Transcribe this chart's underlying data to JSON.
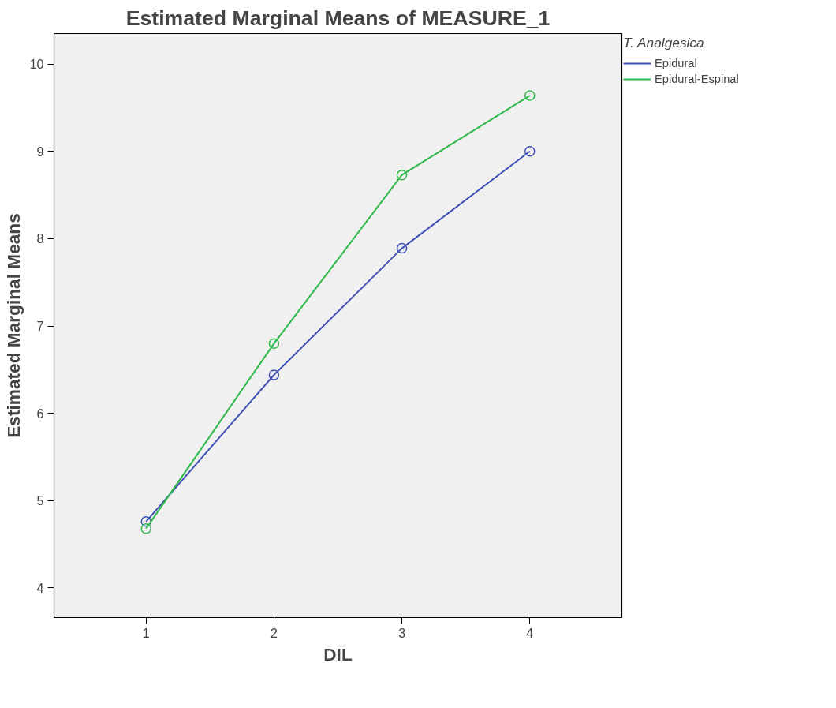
{
  "chart_data": {
    "type": "line",
    "title": "Estimated Marginal Means of MEASURE_1",
    "xlabel": "DIL",
    "ylabel": "Estimated Marginal Means",
    "legend_title": "T. Analgesica",
    "x": [
      1,
      2,
      3,
      4
    ],
    "series": [
      {
        "name": "Epidural",
        "color": "#3f51b5",
        "values": [
          4.76,
          6.44,
          7.89,
          9.0
        ]
      },
      {
        "name": "Epidural-Espinal",
        "color": "#2fb84a",
        "values": [
          4.68,
          6.8,
          8.73,
          9.64
        ]
      }
    ],
    "xlim": [
      0.28,
      4.72
    ],
    "ylim": [
      3.66,
      10.35
    ],
    "xticks": [
      1,
      2,
      3,
      4
    ],
    "yticks": [
      4,
      5,
      6,
      7,
      8,
      9,
      10
    ],
    "grid": false,
    "legend": "top right",
    "marker": "circle",
    "line_style": "solid"
  }
}
